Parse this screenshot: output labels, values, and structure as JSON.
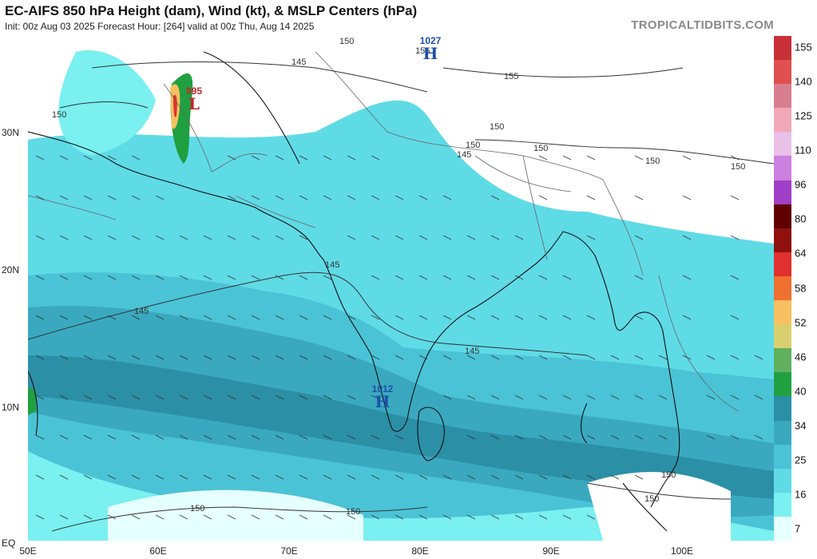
{
  "header": {
    "title": "EC-AIFS 850 hPa Height (dam), Wind (kt), & MSLP Centers (hPa)",
    "subtitle": "Init: 00z Aug 03 2025   Forecast Hour: [264]   valid at 00z Thu, Aug 14 2025",
    "brand": "TROPICALTIDBITS.COM"
  },
  "axes": {
    "lat_labels": [
      "30N",
      "20N",
      "10N",
      "EQ"
    ],
    "lon_labels": [
      "50E",
      "60E",
      "70E",
      "80E",
      "90E",
      "100E"
    ]
  },
  "colorbar": {
    "ticks": [
      "155",
      "140",
      "125",
      "110",
      "96",
      "80",
      "64",
      "58",
      "52",
      "46",
      "40",
      "34",
      "25",
      "16",
      "7"
    ],
    "colors": [
      "#c8303a",
      "#e05050",
      "#d87f8f",
      "#f0a8b8",
      "#e8c0e8",
      "#cc80e0",
      "#a040c8",
      "#600000",
      "#901010",
      "#e03030",
      "#f07030",
      "#f8c060",
      "#d8d070",
      "#60b060",
      "#20a040",
      "#2b8fa6",
      "#3aa9bf",
      "#4bc3d6",
      "#5fdbe6",
      "#7af0f0",
      "#e6ffff"
    ]
  },
  "pressure_centers": [
    {
      "type": "H",
      "value": "1027",
      "color": "#1d4fa8"
    },
    {
      "type": "L",
      "value": "995",
      "color": "#c0262b"
    },
    {
      "type": "H",
      "value": "1012",
      "color": "#1d4fa8"
    }
  ],
  "contour_labels": [
    "150",
    "145",
    "155",
    "150",
    "155",
    "150",
    "150",
    "150",
    "145",
    "150",
    "150",
    "145",
    "145",
    "145",
    "150",
    "150",
    "150",
    "150"
  ]
}
